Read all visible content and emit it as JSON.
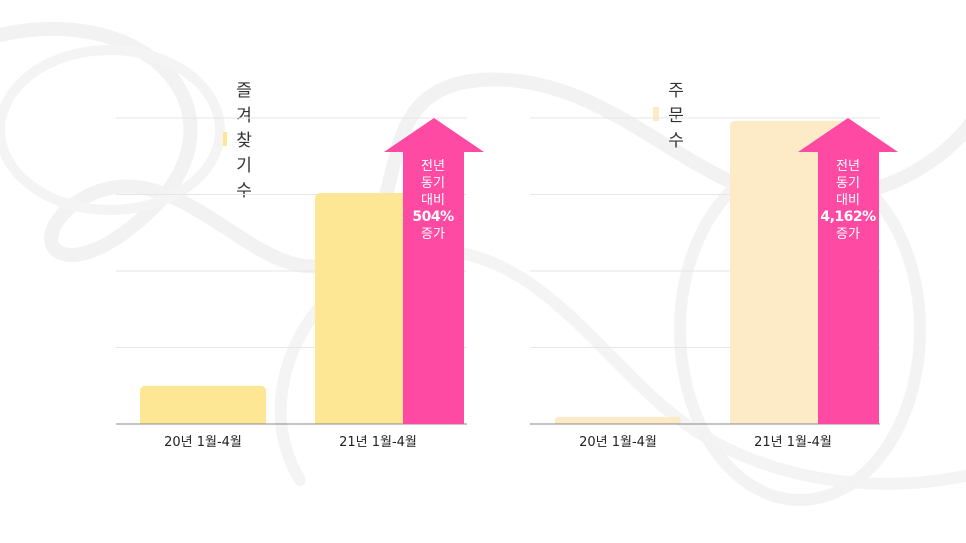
{
  "charts": [
    {
      "legend": {
        "label": "즐겨찾기 수",
        "color": "#FDE795"
      },
      "arrow": {
        "line1": "전년",
        "line2": "동기",
        "line3": "대비",
        "pct": "504%",
        "line5": "증가",
        "color": "#FF4AA3"
      }
    },
    {
      "legend": {
        "label": "주문 수",
        "color": "#FDEBC7"
      },
      "arrow": {
        "line1": "전년",
        "line2": "동기",
        "line3": "대비",
        "pct": "4,162%",
        "line5": "증가",
        "color": "#FF4AA3"
      }
    }
  ],
  "chart_data": [
    {
      "type": "bar",
      "categories": [
        "20년 1월-4월",
        "21년 1월-4월"
      ],
      "series": [
        {
          "name": "즐겨찾기 수",
          "values": [
            1.0,
            6.04
          ],
          "color": "#FDE795"
        }
      ],
      "ylim": [
        0,
        8
      ],
      "grid": true,
      "legend": "top"
    },
    {
      "type": "bar",
      "categories": [
        "20년 1월-4월",
        "21년 1월-4월"
      ],
      "series": [
        {
          "name": "주문 수",
          "values": [
            1.0,
            42.62
          ],
          "color": "#FDEBC7"
        }
      ],
      "ylim": [
        0,
        43
      ],
      "grid": true,
      "legend": "top"
    }
  ]
}
